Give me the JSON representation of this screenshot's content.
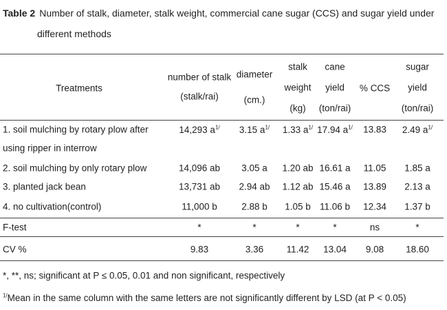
{
  "caption": {
    "label": "Table 2",
    "text": "Number of stalk, diameter, stalk weight, commercial cane sugar (CCS) and sugar yield under different methods"
  },
  "table": {
    "columns": [
      [
        "Treatments"
      ],
      [
        "number of stalk",
        "(stalk/rai)"
      ],
      [
        "diameter",
        "(cm.)"
      ],
      [
        "stalk",
        "weight",
        "(kg)"
      ],
      [
        "cane",
        "yield",
        "(ton/rai)"
      ],
      [
        "% CCS"
      ],
      [
        "sugar",
        "yield",
        "(ton/rai)"
      ]
    ],
    "rows": [
      [
        [
          "1. soil mulching by rotary plow after",
          "using ripper in interrow"
        ],
        {
          "text": "14,293 a",
          "sup": "1/"
        },
        {
          "text": "3.15 a",
          "sup": "1/"
        },
        {
          "text": "1.33 a",
          "sup": "1/"
        },
        {
          "text": "17.94 a",
          "sup": "1/"
        },
        "13.83",
        {
          "text": "2.49 a",
          "sup": "1/"
        }
      ],
      [
        "2. soil mulching by only rotary plow",
        "14,096 ab",
        "3.05 a",
        "1.20 ab",
        "16.61 a",
        "11.05",
        "1.85 a"
      ],
      [
        "3. planted jack bean",
        "13,731 ab",
        "2.94 ab",
        "1.12 ab",
        "15.46 a",
        "13.89",
        "2.13 a"
      ],
      [
        "4. no cultivation(control)",
        "11,000 b",
        "2.88 b",
        "1.05 b",
        "11.06 b",
        "12.34",
        "1.37 b"
      ],
      [
        "F-test",
        "*",
        "*",
        "*",
        "*",
        "ns",
        "*"
      ],
      [
        "CV %",
        "9.83",
        "3.36",
        "11.42",
        "13.04",
        "9.08",
        "18.60"
      ]
    ]
  },
  "footnotes": [
    {
      "text": "*, **, ns; significant at P ≤ 0.05, 0.01 and non significant, respectively"
    },
    {
      "sup": "1/",
      "text": "Mean in the same column with the same letters are not significantly different by LSD (at P < 0.05)"
    }
  ]
}
